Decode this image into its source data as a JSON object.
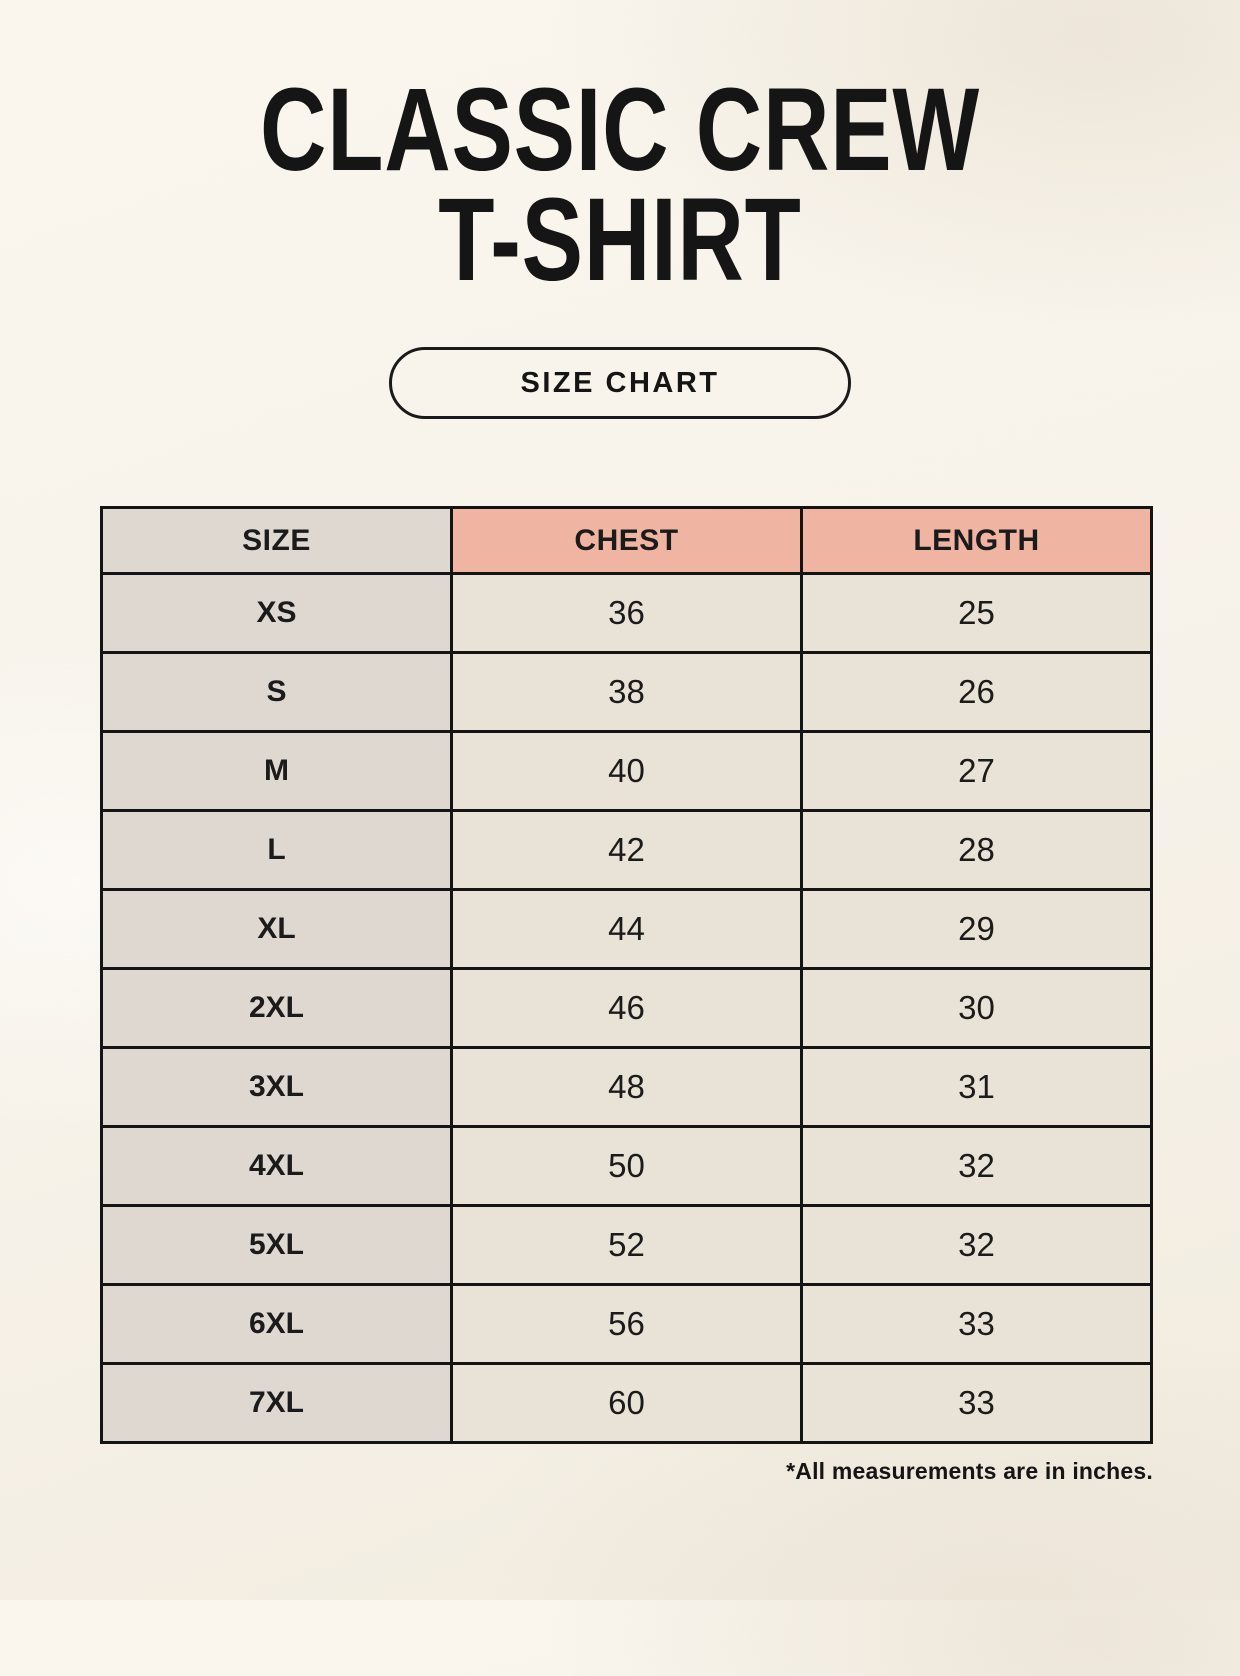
{
  "page": {
    "title_lines": [
      "CLASSIC CREW",
      "T-SHIRT"
    ],
    "size_chart_button": "SIZE CHART",
    "footnote": "*All measurements are in inches."
  },
  "colors": {
    "background": "#f7f3ea",
    "header_accent": "#efb5a2",
    "size_column": "#ded8d1",
    "data_cell": "#e9e2d6",
    "border": "#141414",
    "text": "#1b1b1b"
  },
  "chart_data": {
    "type": "table",
    "title": "CLASSIC CREW T-SHIRT",
    "subtitle": "SIZE CHART",
    "columns": [
      "SIZE",
      "CHEST",
      "LENGTH"
    ],
    "rows": [
      {
        "size": "XS",
        "chest": 36,
        "length": 25
      },
      {
        "size": "S",
        "chest": 38,
        "length": 26
      },
      {
        "size": "M",
        "chest": 40,
        "length": 27
      },
      {
        "size": "L",
        "chest": 42,
        "length": 28
      },
      {
        "size": "XL",
        "chest": 44,
        "length": 29
      },
      {
        "size": "2XL",
        "chest": 46,
        "length": 30
      },
      {
        "size": "3XL",
        "chest": 48,
        "length": 31
      },
      {
        "size": "4XL",
        "chest": 50,
        "length": 32
      },
      {
        "size": "5XL",
        "chest": 52,
        "length": 32
      },
      {
        "size": "6XL",
        "chest": 56,
        "length": 33
      },
      {
        "size": "7XL",
        "chest": 60,
        "length": 33
      }
    ],
    "units_note": "*All measurements are in inches."
  }
}
